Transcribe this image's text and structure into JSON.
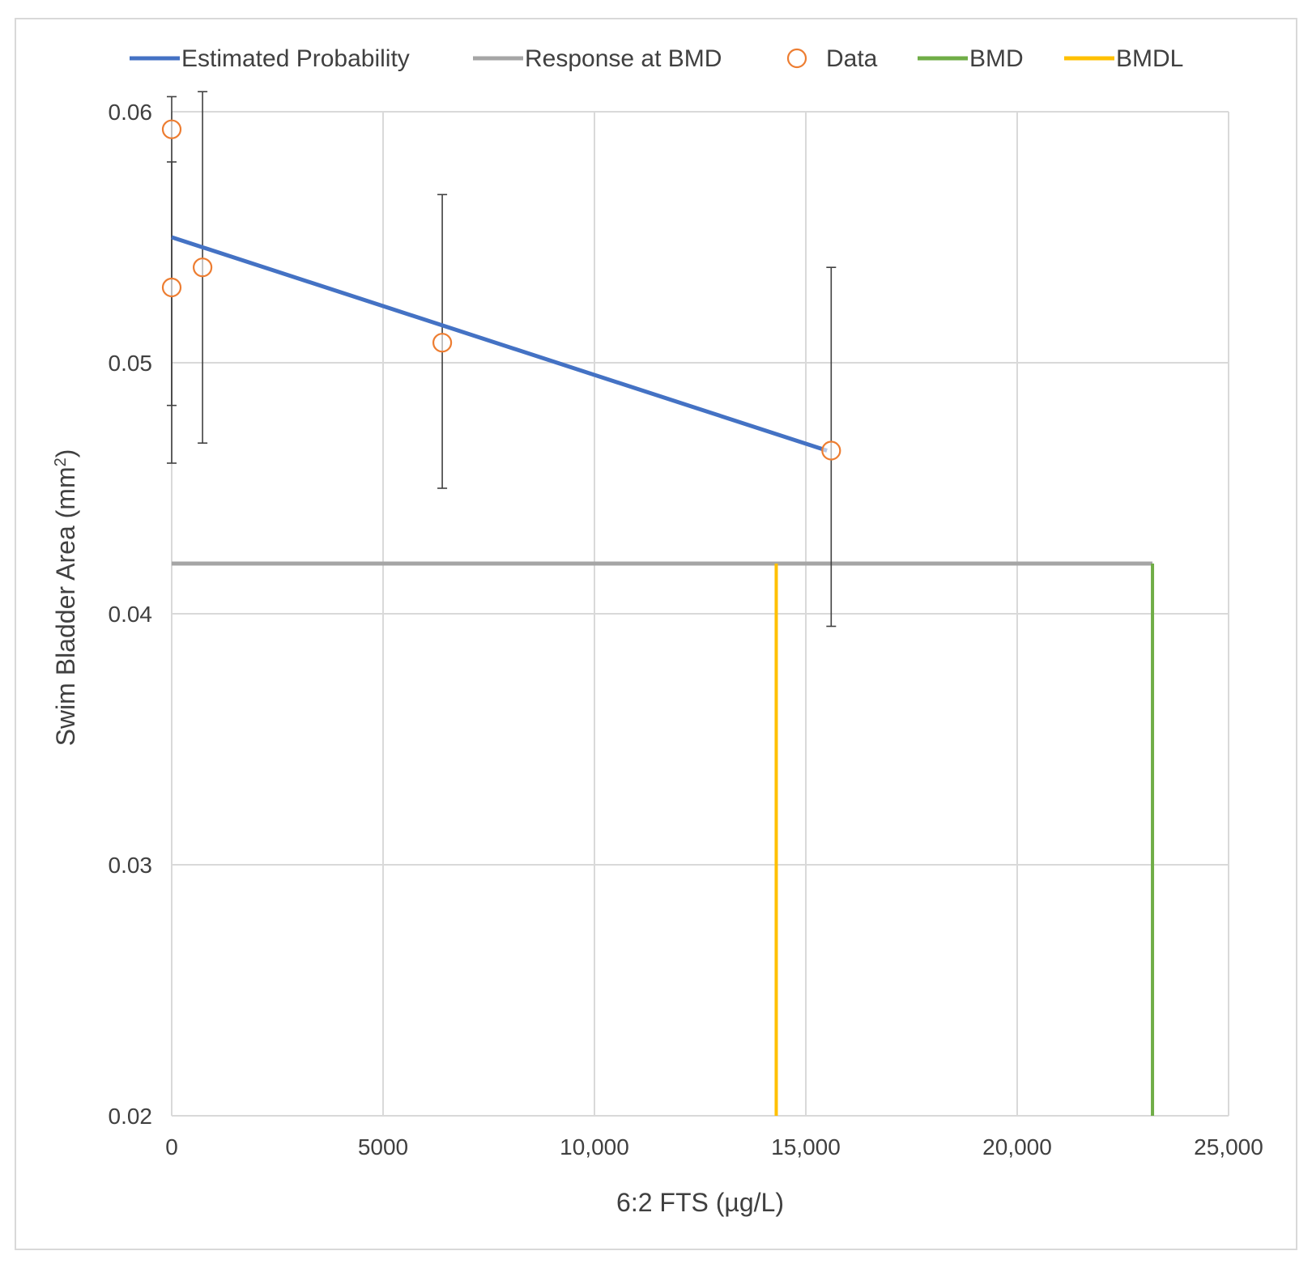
{
  "chart_data": {
    "type": "scatter",
    "xlabel": "6:2 FTS (µg/L)",
    "ylabel_main": "Swim Bladder Area (mm",
    "ylabel_sup": "2",
    "ylabel_tail": ")",
    "xlim": [
      0,
      25000
    ],
    "ylim": [
      0.02,
      0.06
    ],
    "x_ticks": [
      0,
      5000,
      10000,
      15000,
      20000,
      25000
    ],
    "x_tick_labels": [
      "0",
      "5000",
      "10,000",
      "15,000",
      "20,000",
      "25,000"
    ],
    "y_ticks": [
      0.02,
      0.03,
      0.04,
      0.05,
      0.06
    ],
    "y_tick_labels": [
      "0.02",
      "0.03",
      "0.04",
      "0.05",
      "0.06"
    ],
    "grid": true,
    "legend_position": "top",
    "legend": [
      {
        "label": "Estimated Probability",
        "kind": "line",
        "color": "#4472c4"
      },
      {
        "label": "Response at BMD",
        "kind": "line",
        "color": "#a5a5a5"
      },
      {
        "label": "Data",
        "kind": "marker",
        "color": "#ed7d31"
      },
      {
        "label": "BMD",
        "kind": "line",
        "color": "#70ad47"
      },
      {
        "label": "BMDL",
        "kind": "line",
        "color": "#ffc000"
      }
    ],
    "estimated_probability": {
      "x": [
        0,
        15500
      ],
      "y": [
        0.055,
        0.0465
      ],
      "color": "#4472c4"
    },
    "response_at_bmd": {
      "x": [
        0,
        23200
      ],
      "y": 0.042,
      "color": "#a5a5a5"
    },
    "bmd": {
      "x": 23200,
      "y": [
        0.02,
        0.042
      ],
      "color": "#70ad47"
    },
    "bmdl": {
      "x": 14300,
      "y": [
        0.02,
        0.042
      ],
      "color": "#ffc000"
    },
    "data": {
      "color": "#ed7d31",
      "points": [
        {
          "x": 0,
          "y": 0.0593,
          "err_low": 0.0483,
          "err_high": 0.0606
        },
        {
          "x": 0,
          "y": 0.053,
          "err_low": 0.046,
          "err_high": 0.058
        },
        {
          "x": 730,
          "y": 0.0538,
          "err_low": 0.0468,
          "err_high": 0.0608
        },
        {
          "x": 6400,
          "y": 0.0508,
          "err_low": 0.045,
          "err_high": 0.0567
        },
        {
          "x": 15600,
          "y": 0.0465,
          "err_low": 0.0395,
          "err_high": 0.0538
        }
      ]
    }
  }
}
